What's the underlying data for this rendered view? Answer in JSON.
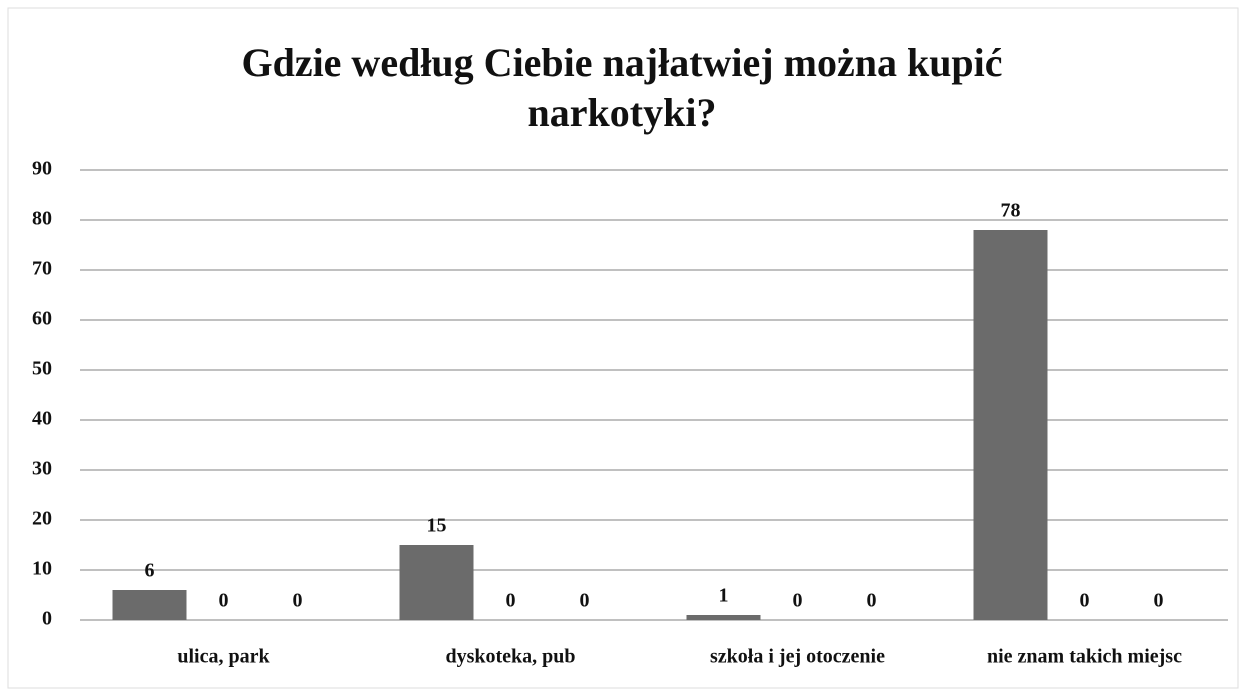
{
  "chart_data": {
    "type": "bar",
    "title": "Gdzie według Ciebie najłatwiej można kupić narkotyki?",
    "categories": [
      "ulica, park",
      "dyskoteka, pub",
      "szkoła i jej otoczenie",
      "nie znam takich miejsc"
    ],
    "series": [
      {
        "color": "#6b6b6b",
        "values": [
          6,
          15,
          1,
          78
        ]
      },
      {
        "color": "#9a9a9a",
        "values": [
          0,
          0,
          0,
          0
        ]
      },
      {
        "color": "#bdbdbd",
        "values": [
          0,
          0,
          0,
          0
        ]
      }
    ],
    "ylim": [
      0,
      90
    ],
    "yticks": [
      0,
      10,
      20,
      30,
      40,
      50,
      60,
      70,
      80,
      90
    ],
    "grid": true
  }
}
